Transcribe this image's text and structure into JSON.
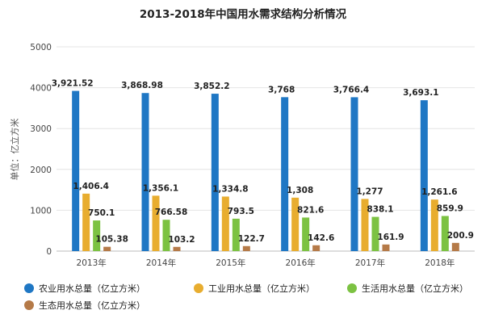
{
  "chart_data": {
    "type": "bar",
    "title": "2013-2018年中国用水需求结构分析情况",
    "ylabel": "单位：亿立方米",
    "xlabel": "",
    "ylim": [
      0,
      5000
    ],
    "yticks": [
      0,
      1000,
      2000,
      3000,
      4000,
      5000
    ],
    "grid": true,
    "legend_position": "bottom",
    "categories": [
      "2013年",
      "2014年",
      "2015年",
      "2016年",
      "2017年",
      "2018年"
    ],
    "series": [
      {
        "name": "农业用水总量（亿立方米）",
        "color": "#1f77c4",
        "values": [
          3921.52,
          3868.98,
          3852.2,
          3768,
          3766.4,
          3693.1
        ],
        "labels": [
          "3,921.52",
          "3,868.98",
          "3,852.2",
          "3,768",
          "3,766.4",
          "3,693.1"
        ]
      },
      {
        "name": "工业用水总量（亿立方米）",
        "color": "#e8ad2f",
        "values": [
          1406.4,
          1356.1,
          1334.8,
          1308,
          1277,
          1261.6
        ],
        "labels": [
          "1,406.4",
          "1,356.1",
          "1,334.8",
          "1,308",
          "1,277",
          "1,261.6"
        ]
      },
      {
        "name": "生活用水总量（亿立方米）",
        "color": "#7cc242",
        "values": [
          750.1,
          766.58,
          793.5,
          821.6,
          838.1,
          859.9
        ],
        "labels": [
          "750.1",
          "766.58",
          "793.5",
          "821.6",
          "838.1",
          "859.9"
        ]
      },
      {
        "name": "生态用水总量（亿立方米）",
        "color": "#b57a48",
        "values": [
          105.38,
          103.2,
          122.7,
          142.6,
          161.9,
          200.9
        ],
        "labels": [
          "105.38",
          "103.2",
          "122.7",
          "142.6",
          "161.9",
          "200.9"
        ]
      }
    ]
  }
}
